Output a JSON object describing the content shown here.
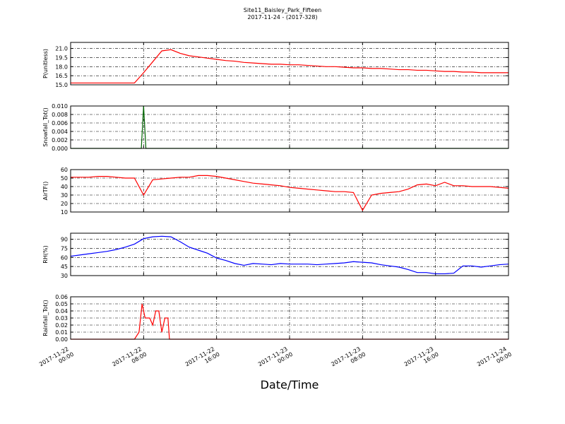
{
  "chart_data": {
    "type": "line",
    "title": "Site11_Baisley_Park_Fifteen",
    "subtitle": "2017-11-24 - (2017-328)",
    "x_label": "Date/Time",
    "grid": true,
    "xlim": [
      "2017-11-22 00:00",
      "2017-11-24 00:00"
    ],
    "xticks": [
      "2017-11-22 00:00",
      "2017-11-22 08:00",
      "2017-11-22 16:00",
      "2017-11-23 00:00",
      "2017-11-23 08:00",
      "2017-11-23 16:00",
      "2017-11-24 00:00"
    ],
    "x": [
      "2017-11-22 00:00",
      "2017-11-22 01:00",
      "2017-11-22 02:00",
      "2017-11-22 03:00",
      "2017-11-22 04:00",
      "2017-11-22 05:00",
      "2017-11-22 06:00",
      "2017-11-22 07:00",
      "2017-11-22 08:00",
      "2017-11-22 09:00",
      "2017-11-22 10:00",
      "2017-11-22 11:00",
      "2017-11-22 12:00",
      "2017-11-22 13:00",
      "2017-11-22 14:00",
      "2017-11-22 15:00",
      "2017-11-22 16:00",
      "2017-11-22 17:00",
      "2017-11-22 18:00",
      "2017-11-22 19:00",
      "2017-11-22 20:00",
      "2017-11-22 21:00",
      "2017-11-22 22:00",
      "2017-11-22 23:00",
      "2017-11-23 00:00",
      "2017-11-23 01:00",
      "2017-11-23 02:00",
      "2017-11-23 03:00",
      "2017-11-23 04:00",
      "2017-11-23 05:00",
      "2017-11-23 06:00",
      "2017-11-23 07:00",
      "2017-11-23 08:00",
      "2017-11-23 09:00",
      "2017-11-23 10:00",
      "2017-11-23 11:00",
      "2017-11-23 12:00",
      "2017-11-23 13:00",
      "2017-11-23 14:00",
      "2017-11-23 15:00",
      "2017-11-23 16:00",
      "2017-11-23 17:00",
      "2017-11-23 18:00",
      "2017-11-23 19:00",
      "2017-11-23 20:00",
      "2017-11-23 21:00",
      "2017-11-23 22:00",
      "2017-11-23 23:00",
      "2017-11-24 00:00"
    ],
    "panels": [
      {
        "ylabel": "P(unitless)",
        "color": "#ff0000",
        "ylim": [
          15.0,
          22.0
        ],
        "yticks": [
          {
            "value": 15.0,
            "label": "15.0"
          },
          {
            "value": 16.5,
            "label": "16.5"
          },
          {
            "value": 18.0,
            "label": "18.0"
          },
          {
            "value": 19.5,
            "label": "19.5"
          },
          {
            "value": 21.0,
            "label": "21.0"
          }
        ],
        "values": [
          15.3,
          15.3,
          15.3,
          15.3,
          15.3,
          15.3,
          15.3,
          15.3,
          17.0,
          18.8,
          20.6,
          20.8,
          20.2,
          19.8,
          19.6,
          19.4,
          19.2,
          19.0,
          18.9,
          18.7,
          18.6,
          18.5,
          18.4,
          18.4,
          18.3,
          18.3,
          18.2,
          18.1,
          18.0,
          18.0,
          17.9,
          17.8,
          17.8,
          17.7,
          17.7,
          17.6,
          17.5,
          17.5,
          17.4,
          17.4,
          17.3,
          17.2,
          17.2,
          17.1,
          17.1,
          17.0,
          17.0,
          17.0,
          17.0
        ]
      },
      {
        "ylabel": "Snowfall_Tot()",
        "color": "#006400",
        "ylim": [
          0,
          0.01
        ],
        "yticks": [
          {
            "value": 0,
            "label": "0.000"
          },
          {
            "value": 0.002,
            "label": "0.002"
          },
          {
            "value": 0.004,
            "label": "0.004"
          },
          {
            "value": 0.006,
            "label": "0.006"
          },
          {
            "value": 0.008,
            "label": "0.008"
          },
          {
            "value": 0.01,
            "label": "0.010"
          }
        ],
        "x": [
          "2017-11-22 00:00",
          "2017-11-22 07:45",
          "2017-11-22 08:00",
          "2017-11-22 08:15",
          "2017-11-24 00:00"
        ],
        "values": [
          0,
          0,
          0.01,
          0,
          0
        ]
      },
      {
        "ylabel": "AirTF()",
        "color": "#ff0000",
        "ylim": [
          10,
          60
        ],
        "yticks": [
          10,
          20,
          30,
          40,
          50,
          60
        ],
        "values": [
          51,
          51,
          51,
          52,
          52,
          51,
          50,
          50,
          30,
          48,
          49,
          50,
          51,
          51,
          53,
          53,
          52,
          50,
          48,
          46,
          44,
          43,
          42,
          41,
          39,
          38,
          37,
          36,
          35,
          34,
          34,
          33,
          12,
          30,
          32,
          33,
          34,
          37,
          42,
          43,
          41,
          45,
          41,
          41,
          40,
          40,
          40,
          39,
          38
        ]
      },
      {
        "ylabel": "RH(%)",
        "color": "#0000ff",
        "ylim": [
          30,
          100
        ],
        "yticks": [
          30,
          45,
          60,
          75,
          90
        ],
        "values": [
          62,
          64,
          66,
          68,
          70,
          73,
          77,
          82,
          91,
          94,
          95,
          94,
          86,
          77,
          72,
          67,
          59,
          55,
          50,
          47,
          50,
          49,
          48,
          50,
          49,
          49,
          49,
          48,
          49,
          50,
          51,
          53,
          52,
          51,
          48,
          46,
          44,
          40,
          35,
          35,
          33,
          33,
          34,
          46,
          46,
          44,
          46,
          48,
          49
        ]
      },
      {
        "ylabel": "Rainfall_Tot()",
        "color": "#ff0000",
        "ylim": [
          0,
          0.06
        ],
        "yticks": [
          {
            "value": 0,
            "label": "0.00"
          },
          {
            "value": 0.01,
            "label": "0.01"
          },
          {
            "value": 0.02,
            "label": "0.02"
          },
          {
            "value": 0.03,
            "label": "0.03"
          },
          {
            "value": 0.04,
            "label": "0.04"
          },
          {
            "value": 0.05,
            "label": "0.05"
          },
          {
            "value": 0.06,
            "label": "0.06"
          }
        ],
        "x": [
          "2017-11-22 00:00",
          "2017-11-22 07:00",
          "2017-11-22 07:30",
          "2017-11-22 07:50",
          "2017-11-22 08:10",
          "2017-11-22 08:40",
          "2017-11-22 09:00",
          "2017-11-22 09:20",
          "2017-11-22 09:40",
          "2017-11-22 10:00",
          "2017-11-22 10:20",
          "2017-11-22 10:40",
          "2017-11-22 10:50",
          "2017-11-24 00:00"
        ],
        "values": [
          0,
          0,
          0.01,
          0.05,
          0.03,
          0.03,
          0.02,
          0.04,
          0.04,
          0.01,
          0.03,
          0.03,
          0,
          0
        ]
      }
    ]
  }
}
